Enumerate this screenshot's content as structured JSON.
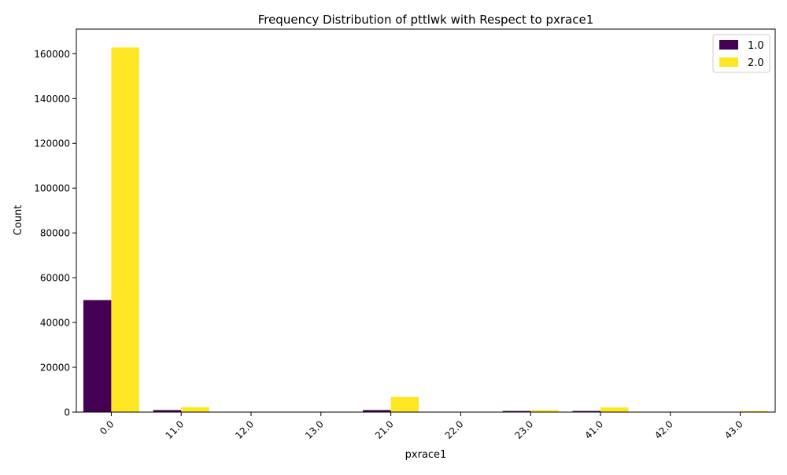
{
  "chart_data": {
    "type": "bar",
    "title": "Frequency Distribution of pttlwk with Respect to pxrace1",
    "xlabel": "pxrace1",
    "ylabel": "Count",
    "categories": [
      "0.0",
      "11.0",
      "12.0",
      "13.0",
      "21.0",
      "22.0",
      "23.0",
      "41.0",
      "42.0",
      "43.0"
    ],
    "series": [
      {
        "name": "1.0",
        "color": "#440154",
        "values": [
          50000,
          900,
          60,
          40,
          900,
          30,
          500,
          500,
          40,
          60
        ]
      },
      {
        "name": "2.0",
        "color": "#fde725",
        "values": [
          162800,
          2200,
          150,
          100,
          6800,
          80,
          900,
          2100,
          120,
          500
        ]
      }
    ],
    "yticks": [
      0,
      20000,
      40000,
      60000,
      80000,
      100000,
      120000,
      140000,
      160000
    ],
    "ylim": [
      0,
      171000
    ],
    "legend": {
      "placement": "top-right",
      "labels": [
        "1.0",
        "2.0"
      ]
    },
    "grid": false
  }
}
